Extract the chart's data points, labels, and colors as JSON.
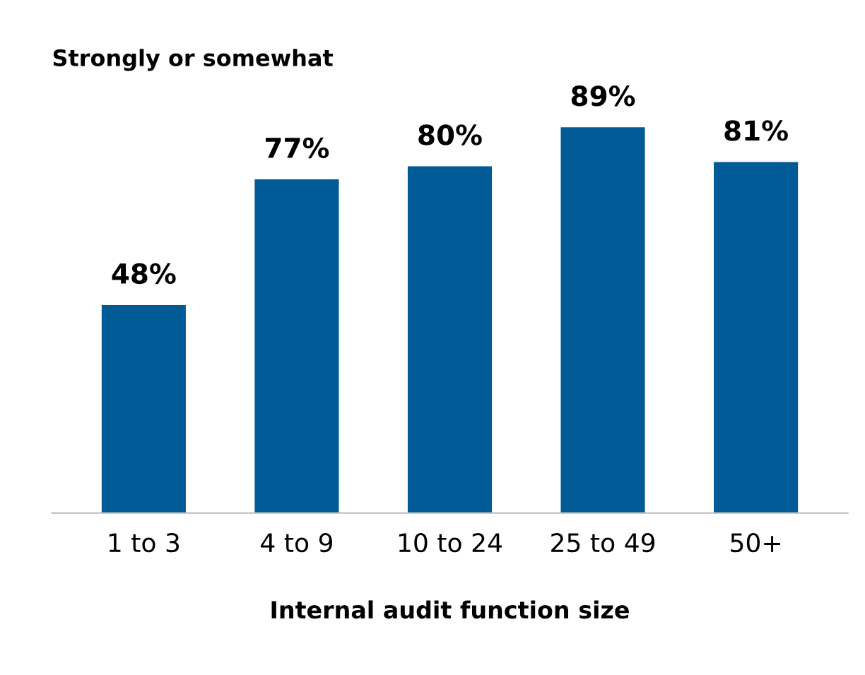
{
  "chart_data": {
    "type": "bar",
    "title": "Strongly or somewhat",
    "xlabel": "Internal audit function size",
    "categories": [
      "1 to 3",
      "4 to 9",
      "10 to 24",
      "25 to 49",
      "50+"
    ],
    "values": [
      48,
      77,
      80,
      89,
      81
    ],
    "value_labels": [
      "48%",
      "77%",
      "80%",
      "89%",
      "81%"
    ],
    "color": "#005b96",
    "grid": false,
    "legend": false,
    "tick_labels": "x"
  }
}
